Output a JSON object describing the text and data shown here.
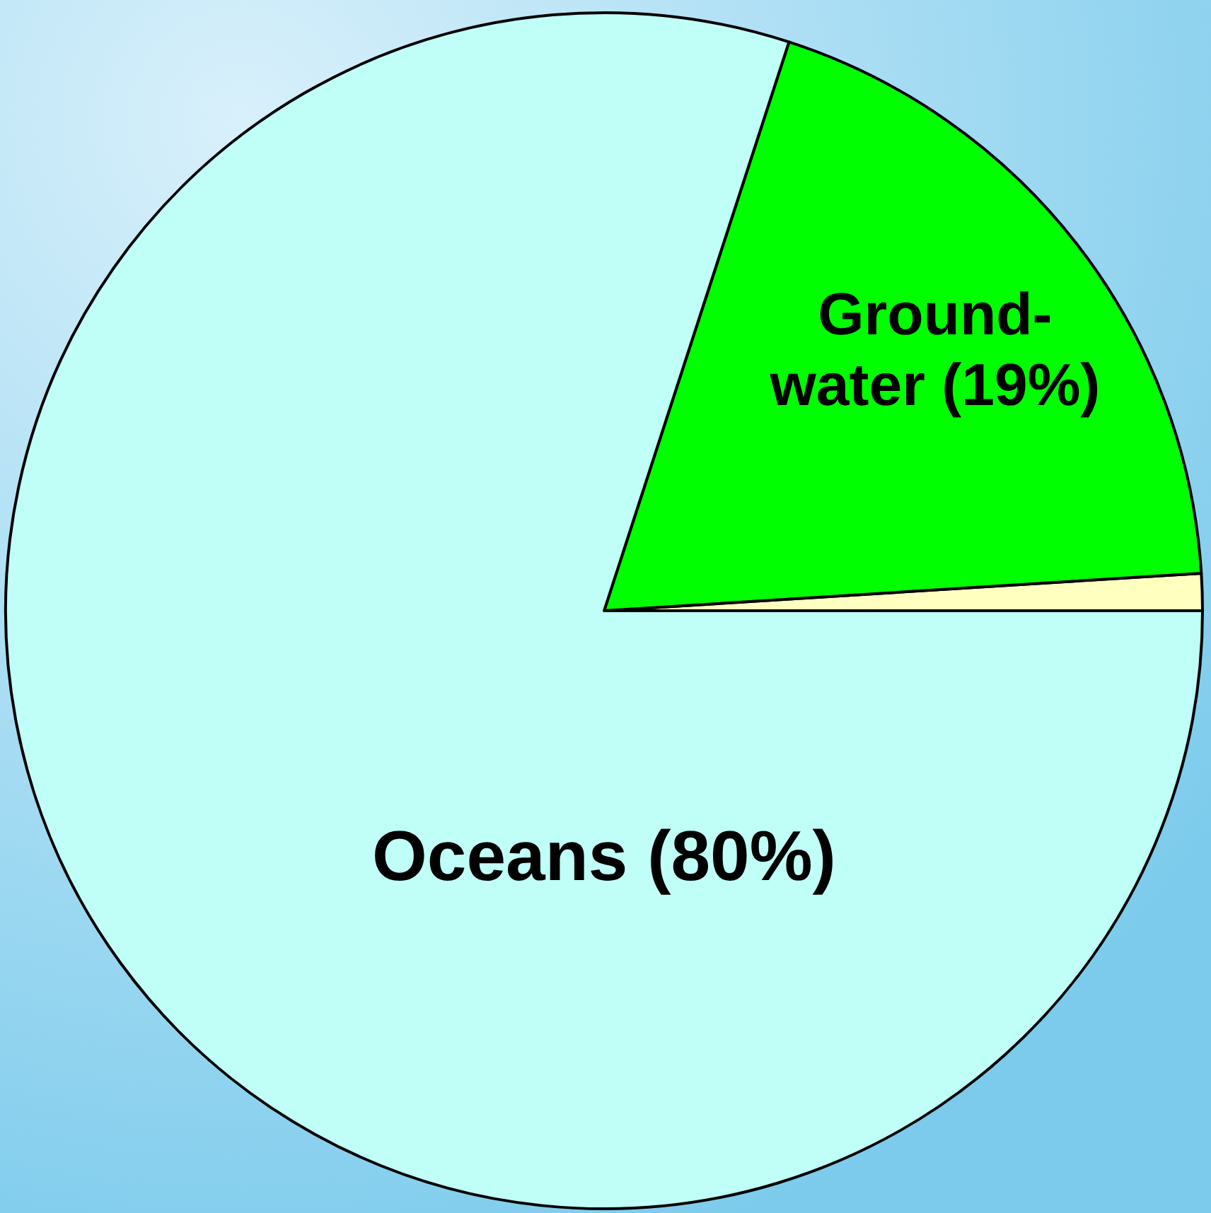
{
  "chart_data": {
    "type": "pie",
    "categories": [
      null,
      "Ground-water",
      "Oceans"
    ],
    "values": [
      1,
      19,
      80
    ],
    "colors": [
      "#ffffc0",
      "#00ff00",
      "#c0fff8"
    ],
    "value_labels": [
      null,
      "(19%)",
      "(80%)"
    ]
  }
}
